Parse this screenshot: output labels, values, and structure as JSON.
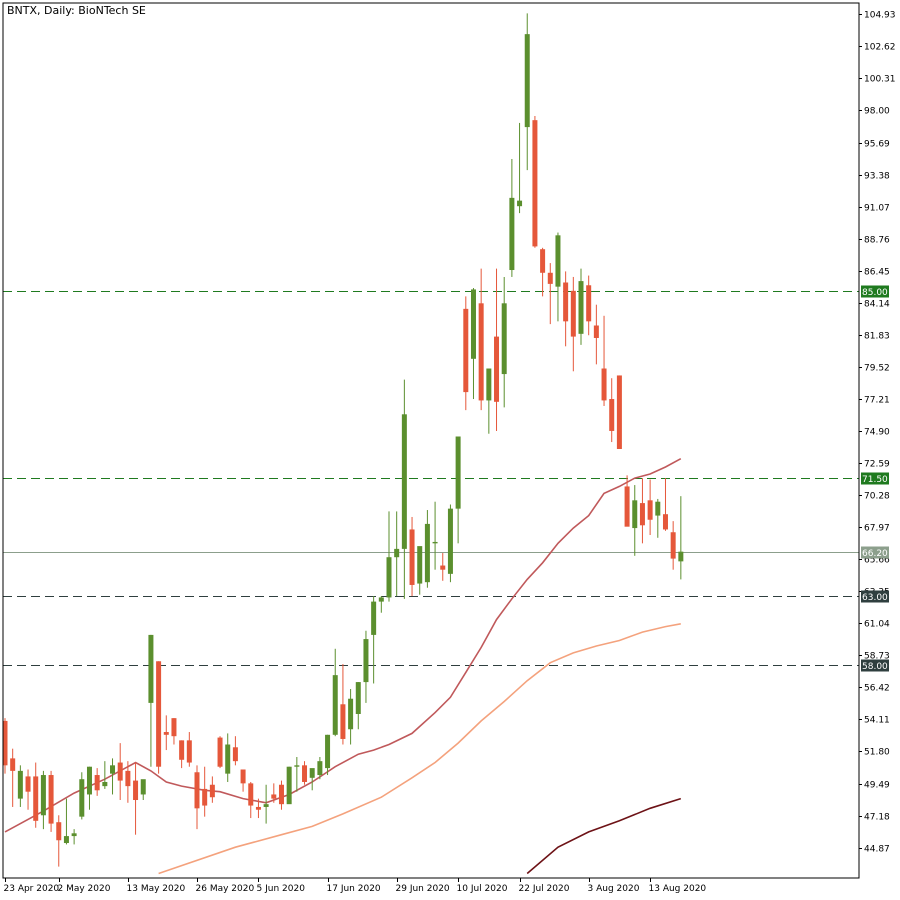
{
  "chart_data": {
    "type": "candlestick",
    "title": "BNTX, Daily:  BioNTech SE",
    "ylim": [
      43.0,
      106.0
    ],
    "yticks": [
      "104.93",
      "102.62",
      "100.31",
      "98.00",
      "95.69",
      "93.38",
      "91.07",
      "88.76",
      "86.45",
      "84.14",
      "81.83",
      "79.52",
      "77.21",
      "74.90",
      "72.59",
      "70.28",
      "67.97",
      "65.66",
      "63.35",
      "61.04",
      "58.73",
      "56.42",
      "54.11",
      "51.80",
      "49.49",
      "47.18",
      "44.87"
    ],
    "xticks": [
      {
        "i": 0,
        "label": "23 Apr 2020"
      },
      {
        "i": 7,
        "label": "2 May 2020"
      },
      {
        "i": 16,
        "label": "13 May 2020"
      },
      {
        "i": 25,
        "label": "26 May 2020"
      },
      {
        "i": 33,
        "label": "5 Jun 2020"
      },
      {
        "i": 42,
        "label": "17 Jun 2020"
      },
      {
        "i": 51,
        "label": "29 Jun 2020"
      },
      {
        "i": 59,
        "label": "10 Jul 2020"
      },
      {
        "i": 67,
        "label": "22 Jul 2020"
      },
      {
        "i": 76,
        "label": "3 Aug 2020"
      },
      {
        "i": 84,
        "label": "13 Aug 2020"
      }
    ],
    "candles": [
      {
        "o": 54.0,
        "h": 54.2,
        "l": 50.2,
        "c": 50.8
      },
      {
        "o": 51.3,
        "h": 52.0,
        "l": 47.8,
        "c": 50.4
      },
      {
        "o": 48.4,
        "h": 50.8,
        "l": 47.8,
        "c": 50.4
      },
      {
        "o": 50.0,
        "h": 50.5,
        "l": 47.6,
        "c": 48.9
      },
      {
        "o": 50.0,
        "h": 51.0,
        "l": 46.3,
        "c": 46.8
      },
      {
        "o": 47.2,
        "h": 50.4,
        "l": 46.2,
        "c": 50.1
      },
      {
        "o": 50.1,
        "h": 50.4,
        "l": 46.0,
        "c": 46.6
      },
      {
        "o": 46.7,
        "h": 47.2,
        "l": 43.5,
        "c": 45.4
      },
      {
        "o": 45.2,
        "h": 48.4,
        "l": 45.1,
        "c": 45.7
      },
      {
        "o": 45.7,
        "h": 46.2,
        "l": 45.1,
        "c": 45.9
      },
      {
        "o": 47.1,
        "h": 50.3,
        "l": 46.9,
        "c": 49.8
      },
      {
        "o": 48.7,
        "h": 50.7,
        "l": 47.6,
        "c": 50.7
      },
      {
        "o": 50.1,
        "h": 50.6,
        "l": 48.6,
        "c": 49.0
      },
      {
        "o": 49.3,
        "h": 51.1,
        "l": 49.1,
        "c": 49.6
      },
      {
        "o": 50.2,
        "h": 51.3,
        "l": 48.7,
        "c": 50.8
      },
      {
        "o": 51.0,
        "h": 52.4,
        "l": 48.3,
        "c": 49.7
      },
      {
        "o": 50.4,
        "h": 51.1,
        "l": 48.1,
        "c": 49.3
      },
      {
        "o": 49.7,
        "h": 51.0,
        "l": 45.8,
        "c": 48.3
      },
      {
        "o": 48.7,
        "h": 49.7,
        "l": 48.3,
        "c": 49.8
      },
      {
        "o": 55.3,
        "h": 60.2,
        "l": 50.7,
        "c": 60.2
      },
      {
        "o": 58.3,
        "h": 58.3,
        "l": 50.2,
        "c": 50.7
      },
      {
        "o": 53.2,
        "h": 54.4,
        "l": 51.9,
        "c": 53.0
      },
      {
        "o": 54.2,
        "h": 54.2,
        "l": 52.3,
        "c": 52.9
      },
      {
        "o": 52.6,
        "h": 52.6,
        "l": 50.6,
        "c": 51.2
      },
      {
        "o": 52.6,
        "h": 53.2,
        "l": 50.7,
        "c": 51.0
      },
      {
        "o": 50.3,
        "h": 50.8,
        "l": 46.2,
        "c": 47.7
      },
      {
        "o": 49.1,
        "h": 50.7,
        "l": 47.1,
        "c": 47.9
      },
      {
        "o": 49.4,
        "h": 50.0,
        "l": 48.1,
        "c": 48.5
      },
      {
        "o": 52.8,
        "h": 52.9,
        "l": 50.6,
        "c": 50.7
      },
      {
        "o": 50.2,
        "h": 53.1,
        "l": 49.6,
        "c": 52.3
      },
      {
        "o": 52.1,
        "h": 52.9,
        "l": 50.8,
        "c": 51.1
      },
      {
        "o": 50.5,
        "h": 50.5,
        "l": 48.9,
        "c": 49.5
      },
      {
        "o": 49.5,
        "h": 49.6,
        "l": 47.0,
        "c": 47.9
      },
      {
        "o": 47.8,
        "h": 48.4,
        "l": 47.0,
        "c": 47.6
      },
      {
        "o": 47.8,
        "h": 49.4,
        "l": 46.6,
        "c": 48.0
      },
      {
        "o": 48.7,
        "h": 49.5,
        "l": 48.1,
        "c": 48.4
      },
      {
        "o": 49.4,
        "h": 49.7,
        "l": 47.6,
        "c": 48.0
      },
      {
        "o": 48.0,
        "h": 50.7,
        "l": 48.1,
        "c": 50.7
      },
      {
        "o": 50.7,
        "h": 51.4,
        "l": 48.9,
        "c": 50.8
      },
      {
        "o": 50.8,
        "h": 51.1,
        "l": 49.4,
        "c": 49.6
      },
      {
        "o": 49.9,
        "h": 50.5,
        "l": 49.0,
        "c": 50.6
      },
      {
        "o": 50.1,
        "h": 51.4,
        "l": 49.8,
        "c": 51.1
      },
      {
        "o": 50.6,
        "h": 53.0,
        "l": 50.1,
        "c": 53.0
      },
      {
        "o": 53.0,
        "h": 59.2,
        "l": 52.9,
        "c": 57.3
      },
      {
        "o": 55.2,
        "h": 58.1,
        "l": 52.3,
        "c": 52.7
      },
      {
        "o": 53.4,
        "h": 56.3,
        "l": 52.3,
        "c": 55.6
      },
      {
        "o": 54.5,
        "h": 56.8,
        "l": 53.4,
        "c": 56.8
      },
      {
        "o": 56.8,
        "h": 60.5,
        "l": 55.3,
        "c": 59.9
      },
      {
        "o": 60.2,
        "h": 63.0,
        "l": 56.7,
        "c": 62.6
      },
      {
        "o": 62.6,
        "h": 63.0,
        "l": 61.8,
        "c": 62.9
      },
      {
        "o": 62.9,
        "h": 69.1,
        "l": 62.6,
        "c": 65.8
      },
      {
        "o": 65.8,
        "h": 69.1,
        "l": 63.0,
        "c": 66.4
      },
      {
        "o": 66.4,
        "h": 78.6,
        "l": 62.8,
        "c": 76.1
      },
      {
        "o": 67.8,
        "h": 68.7,
        "l": 63.0,
        "c": 63.8
      },
      {
        "o": 63.9,
        "h": 66.3,
        "l": 63.1,
        "c": 66.6
      },
      {
        "o": 64.0,
        "h": 69.2,
        "l": 63.6,
        "c": 68.2
      },
      {
        "o": 66.8,
        "h": 69.8,
        "l": 64.9,
        "c": 66.9
      },
      {
        "o": 65.2,
        "h": 66.1,
        "l": 64.1,
        "c": 64.9
      },
      {
        "o": 64.6,
        "h": 69.6,
        "l": 64.0,
        "c": 69.3
      },
      {
        "o": 69.3,
        "h": 74.2,
        "l": 66.8,
        "c": 74.5
      },
      {
        "o": 83.7,
        "h": 84.6,
        "l": 76.4,
        "c": 77.7
      },
      {
        "o": 80.1,
        "h": 85.2,
        "l": 77.2,
        "c": 85.1
      },
      {
        "o": 84.1,
        "h": 86.6,
        "l": 76.4,
        "c": 77.1
      },
      {
        "o": 77.1,
        "h": 79.4,
        "l": 74.7,
        "c": 79.4
      },
      {
        "o": 81.7,
        "h": 86.6,
        "l": 74.9,
        "c": 77.0
      },
      {
        "o": 79.0,
        "h": 86.0,
        "l": 76.6,
        "c": 84.1
      },
      {
        "o": 86.5,
        "h": 94.5,
        "l": 86.0,
        "c": 91.7
      },
      {
        "o": 91.1,
        "h": 97.1,
        "l": 90.6,
        "c": 91.5
      },
      {
        "o": 96.8,
        "h": 105.0,
        "l": 93.7,
        "c": 103.5
      },
      {
        "o": 97.3,
        "h": 97.6,
        "l": 88.1,
        "c": 88.2
      },
      {
        "o": 88.0,
        "h": 88.1,
        "l": 84.6,
        "c": 86.3
      },
      {
        "o": 86.3,
        "h": 87.0,
        "l": 82.6,
        "c": 85.5
      },
      {
        "o": 85.3,
        "h": 89.2,
        "l": 82.8,
        "c": 89.0
      },
      {
        "o": 85.6,
        "h": 86.4,
        "l": 81.0,
        "c": 82.8
      },
      {
        "o": 85.0,
        "h": 86.0,
        "l": 79.2,
        "c": 81.7
      },
      {
        "o": 81.9,
        "h": 86.6,
        "l": 81.1,
        "c": 85.7
      },
      {
        "o": 85.4,
        "h": 86.1,
        "l": 81.8,
        "c": 82.8
      },
      {
        "o": 82.5,
        "h": 84.0,
        "l": 79.7,
        "c": 81.6
      },
      {
        "o": 79.4,
        "h": 83.2,
        "l": 76.7,
        "c": 77.1
      },
      {
        "o": 77.2,
        "h": 78.7,
        "l": 74.1,
        "c": 74.9
      },
      {
        "o": 78.9,
        "h": 78.9,
        "l": 73.8,
        "c": 73.6
      },
      {
        "o": 70.9,
        "h": 71.7,
        "l": 68.6,
        "c": 68.0
      },
      {
        "o": 67.9,
        "h": 71.0,
        "l": 65.9,
        "c": 69.9
      },
      {
        "o": 69.7,
        "h": 71.5,
        "l": 66.8,
        "c": 68.1
      },
      {
        "o": 69.9,
        "h": 71.4,
        "l": 67.4,
        "c": 68.5
      },
      {
        "o": 68.8,
        "h": 70.0,
        "l": 67.2,
        "c": 69.8
      },
      {
        "o": 68.9,
        "h": 71.5,
        "l": 67.7,
        "c": 67.8
      },
      {
        "o": 67.6,
        "h": 68.4,
        "l": 64.9,
        "c": 65.7
      },
      {
        "o": 65.5,
        "h": 70.2,
        "l": 64.2,
        "c": 66.2
      }
    ],
    "hlines": [
      {
        "value": 85.0,
        "label": "85.00",
        "style": "dashed",
        "color": "#1f7a1f",
        "tag_bg": "#1f7a1f",
        "tag_fg": "#ffffff"
      },
      {
        "value": 71.5,
        "label": "71.50",
        "style": "dashed",
        "color": "#1f7a1f",
        "tag_bg": "#1f7a1f",
        "tag_fg": "#ffffff"
      },
      {
        "value": 63.0,
        "label": "63.00",
        "style": "dashed",
        "color": "#2f3f3f",
        "tag_bg": "#2f3f3f",
        "tag_fg": "#ffffff"
      },
      {
        "value": 58.0,
        "label": "58.00",
        "style": "dashed",
        "color": "#2f3f3f",
        "tag_bg": "#2f3f3f",
        "tag_fg": "#ffffff"
      },
      {
        "value": 66.2,
        "label": "66.20",
        "style": "solid",
        "color": "#8c9f8c",
        "tag_bg": "#8c9f8c",
        "tag_fg": "#ffffff"
      }
    ],
    "moving_averages": [
      {
        "color": "#c0595b",
        "points": [
          [
            0,
            46.0
          ],
          [
            5,
            47.5
          ],
          [
            9,
            48.8
          ],
          [
            13,
            49.8
          ],
          [
            17,
            51.0
          ],
          [
            19,
            50.4
          ],
          [
            21,
            49.6
          ],
          [
            23,
            49.3
          ],
          [
            26,
            49.0
          ],
          [
            28,
            48.9
          ],
          [
            31,
            48.4
          ],
          [
            34,
            48.1
          ],
          [
            37,
            48.7
          ],
          [
            40,
            49.6
          ],
          [
            43,
            50.7
          ],
          [
            46,
            51.6
          ],
          [
            48,
            51.9
          ],
          [
            50,
            52.3
          ],
          [
            53,
            53.1
          ],
          [
            56,
            54.6
          ],
          [
            58,
            55.7
          ],
          [
            60,
            57.5
          ],
          [
            62,
            59.3
          ],
          [
            64,
            61.3
          ],
          [
            66,
            62.8
          ],
          [
            68,
            64.2
          ],
          [
            70,
            65.4
          ],
          [
            72,
            66.8
          ],
          [
            74,
            67.9
          ],
          [
            76,
            68.8
          ],
          [
            78,
            70.4
          ],
          [
            80,
            70.9
          ],
          [
            82,
            71.5
          ],
          [
            84,
            71.8
          ],
          [
            86,
            72.3
          ],
          [
            88,
            72.9
          ]
        ]
      },
      {
        "color": "#f4a27d",
        "points": [
          [
            20,
            43.0
          ],
          [
            30,
            44.9
          ],
          [
            36,
            45.8
          ],
          [
            40,
            46.4
          ],
          [
            44,
            47.3
          ],
          [
            49,
            48.5
          ],
          [
            53,
            49.9
          ],
          [
            56,
            51.0
          ],
          [
            59,
            52.4
          ],
          [
            62,
            54.0
          ],
          [
            65,
            55.4
          ],
          [
            68,
            56.9
          ],
          [
            71,
            58.2
          ],
          [
            74,
            58.9
          ],
          [
            77,
            59.4
          ],
          [
            80,
            59.8
          ],
          [
            83,
            60.4
          ],
          [
            86,
            60.8
          ],
          [
            88,
            61.0
          ]
        ]
      },
      {
        "color": "#6d1216",
        "points": [
          [
            68,
            43.0
          ],
          [
            72,
            44.9
          ],
          [
            76,
            46.0
          ],
          [
            80,
            46.8
          ],
          [
            84,
            47.7
          ],
          [
            88,
            48.4
          ]
        ]
      }
    ],
    "colors": {
      "bull": "#5b8f2e",
      "bear": "#e5573a",
      "wick": "#2b2b2b",
      "grid": "#8a8a8a",
      "axis": "#000000"
    }
  }
}
